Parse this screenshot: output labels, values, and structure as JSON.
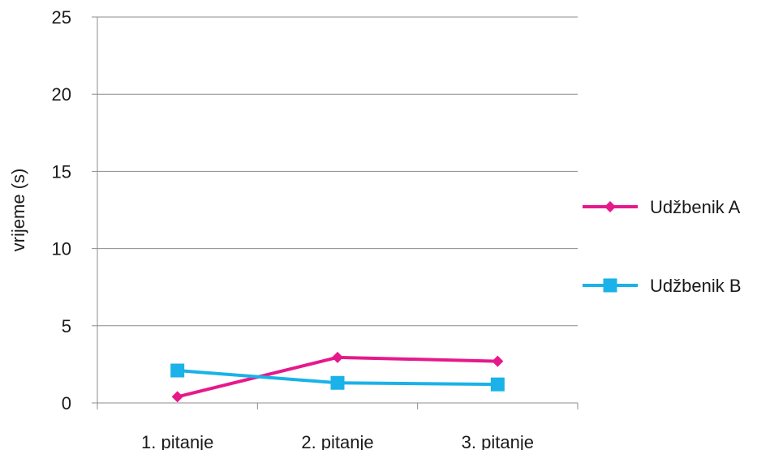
{
  "chart_data": {
    "type": "line",
    "title": "",
    "xlabel": "",
    "ylabel": "vrijeme (s)",
    "categories": [
      "1. pitanje",
      "2. pitanje",
      "3. pitanje"
    ],
    "ylim": [
      0,
      25
    ],
    "yticks": [
      0,
      5,
      10,
      15,
      20,
      25
    ],
    "grid": true,
    "legend_position": "right",
    "series": [
      {
        "name": "Udžbenik A",
        "values": [
          0.4,
          2.95,
          2.7
        ],
        "color": "#e6198b",
        "marker": "diamond"
      },
      {
        "name": "Udžbenik B",
        "values": [
          2.1,
          1.3,
          1.2
        ],
        "color": "#1ab2e8",
        "marker": "square"
      }
    ]
  }
}
